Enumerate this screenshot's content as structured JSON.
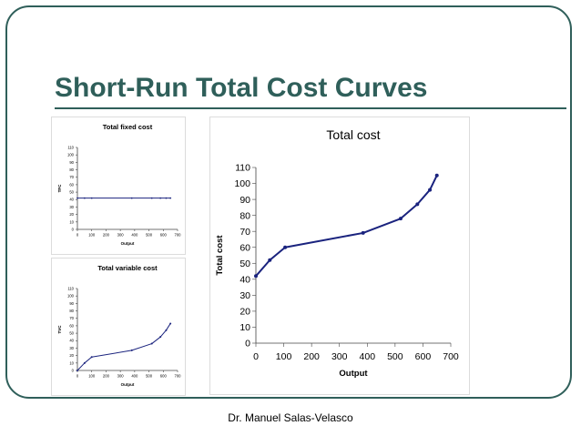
{
  "slide": {
    "title": "Short-Run Total Cost Curves",
    "footer": "Dr. Manuel Salas-Velasco",
    "accent_color": "#2f5f5a",
    "series_color": "#1a237e"
  },
  "chart_data": [
    {
      "id": "tfc",
      "type": "line",
      "title": "Total fixed cost",
      "xlabel": "Output",
      "ylabel": "TFC",
      "xlim": [
        0,
        700
      ],
      "ylim": [
        0,
        110
      ],
      "xticks": [
        0,
        100,
        200,
        300,
        400,
        500,
        600,
        700
      ],
      "yticks": [
        0,
        10,
        20,
        30,
        40,
        50,
        60,
        70,
        80,
        90,
        100,
        110
      ],
      "x": [
        0,
        50,
        100,
        380,
        520,
        580,
        620,
        650
      ],
      "values": [
        42,
        42,
        42,
        42,
        42,
        42,
        42,
        42
      ],
      "grid": false,
      "legend": "none"
    },
    {
      "id": "tvc",
      "type": "line",
      "title": "Total variable cost",
      "xlabel": "Output",
      "ylabel": "TVC",
      "xlim": [
        0,
        700
      ],
      "ylim": [
        0,
        110
      ],
      "xticks": [
        0,
        100,
        200,
        300,
        400,
        500,
        600,
        700
      ],
      "yticks": [
        0,
        10,
        20,
        30,
        40,
        50,
        60,
        70,
        80,
        90,
        100,
        110
      ],
      "x": [
        0,
        50,
        100,
        380,
        520,
        580,
        620,
        650
      ],
      "values": [
        0,
        10,
        18,
        27,
        36,
        45,
        54,
        63
      ],
      "grid": false,
      "legend": "none"
    },
    {
      "id": "tc",
      "type": "line",
      "title": "Total cost",
      "xlabel": "Output",
      "ylabel": "Total cost",
      "xlim": [
        0,
        700
      ],
      "ylim": [
        0,
        110
      ],
      "xticks": [
        0,
        100,
        200,
        300,
        400,
        500,
        600,
        700
      ],
      "yticks": [
        0,
        10,
        20,
        30,
        40,
        50,
        60,
        70,
        80,
        90,
        100,
        110
      ],
      "x": [
        0,
        50,
        105,
        385,
        520,
        580,
        625,
        650
      ],
      "values": [
        42,
        52,
        60,
        69,
        78,
        87,
        96,
        105
      ],
      "grid": false,
      "legend": "none"
    }
  ]
}
